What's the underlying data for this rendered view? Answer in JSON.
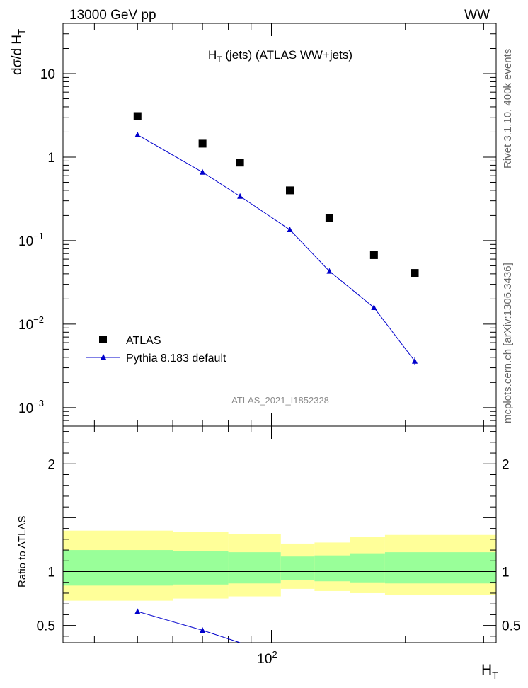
{
  "header": {
    "left": "13000 GeV pp",
    "right": "WW"
  },
  "side": {
    "top": "Rivet 3.1.10,  400k events",
    "bottom": "mcplots.cern.ch [arXiv:1306.3436]"
  },
  "colors": {
    "data": "#000000",
    "mc": "#0000cc",
    "band_outer": "#ffff99",
    "band_inner": "#99ff99"
  },
  "chart_data": [
    {
      "type": "scatter",
      "title_main": "H",
      "title_sub": "T",
      "title_rest": " (jets) (ATLAS WW+jets)",
      "ylabel_pre": "dσ/d H",
      "ylabel_sub": "T",
      "xscale": "log",
      "yscale": "log",
      "xlim": [
        34,
        320
      ],
      "ylim": [
        0.0006,
        40
      ],
      "yticks": [
        {
          "value": 10,
          "label": "10",
          "exp": ""
        },
        {
          "value": 1,
          "label": "1",
          "exp": ""
        },
        {
          "value": 0.1,
          "label": "10",
          "exp": "−1"
        },
        {
          "value": 0.01,
          "label": "10",
          "exp": "−2"
        },
        {
          "value": 0.001,
          "label": "10",
          "exp": "−3"
        }
      ],
      "legend": {
        "placement": "bottom-left",
        "data_label": "ATLAS",
        "mc_label": "Pythia 8.183 default"
      },
      "watermark": "ATLAS_2021_I1852328",
      "series": [
        {
          "name": "ATLAS",
          "marker": "square",
          "x": [
            50,
            70,
            85,
            110,
            135,
            170,
            210
          ],
          "values": [
            3.1,
            1.45,
            0.86,
            0.4,
            0.185,
            0.067,
            0.041
          ]
        },
        {
          "name": "Pythia 8.183 default",
          "marker": "triangle",
          "x": [
            50,
            70,
            85,
            110,
            135,
            170,
            210
          ],
          "values": [
            1.85,
            0.66,
            0.34,
            0.135,
            0.043,
            0.0158,
            0.0036
          ]
        }
      ]
    },
    {
      "type": "line",
      "ylabel": "Ratio to ATLAS",
      "xlabel_main": "H",
      "xlabel_sub": "T",
      "xscale": "log",
      "xlim": [
        34,
        320
      ],
      "ylim": [
        0.34,
        2.35
      ],
      "yticks": [
        {
          "value": 2,
          "label": "2"
        },
        {
          "value": 1,
          "label": "1"
        },
        {
          "value": 0.5,
          "label": "0.5"
        }
      ],
      "xticks": [
        {
          "value": 100,
          "label": "10",
          "exp": "2"
        }
      ],
      "bins": [
        34,
        60,
        80,
        105,
        125,
        150,
        180,
        320
      ],
      "band_outer_lo": [
        0.73,
        0.75,
        0.77,
        0.84,
        0.82,
        0.8,
        0.78
      ],
      "band_outer_hi": [
        1.38,
        1.37,
        1.35,
        1.26,
        1.27,
        1.32,
        1.34
      ],
      "band_inner_lo": [
        0.87,
        0.88,
        0.89,
        0.92,
        0.91,
        0.9,
        0.89
      ],
      "band_inner_hi": [
        1.2,
        1.19,
        1.18,
        1.14,
        1.15,
        1.17,
        1.18
      ],
      "series": [
        {
          "name": "Pythia 8.183 default",
          "x": [
            50,
            70,
            85
          ],
          "values": [
            0.63,
            0.455,
            0.34
          ]
        }
      ]
    }
  ]
}
